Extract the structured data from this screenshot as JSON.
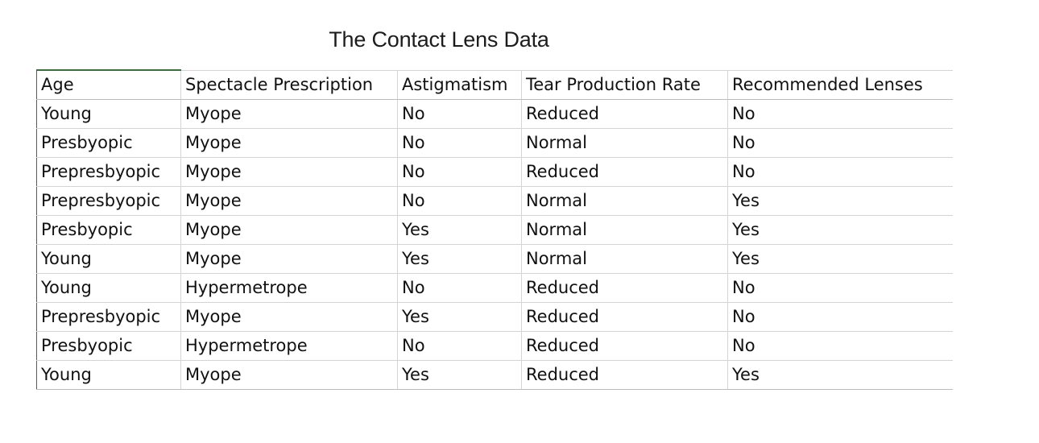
{
  "title": "The Contact Lens Data",
  "table": {
    "headers": [
      "Age",
      "Spectacle Prescription",
      "Astigmatism",
      "Tear Production Rate",
      "Recommended Lenses"
    ],
    "rows": [
      [
        "Young",
        "Myope",
        "No",
        "Reduced",
        "No"
      ],
      [
        "Presbyopic",
        "Myope",
        "No",
        "Normal",
        "No"
      ],
      [
        "Prepresbyopic",
        "Myope",
        "No",
        "Reduced",
        "No"
      ],
      [
        "Prepresbyopic",
        "Myope",
        "No",
        "Normal",
        "Yes"
      ],
      [
        "Presbyopic",
        "Myope",
        "Yes",
        "Normal",
        "Yes"
      ],
      [
        "Young",
        "Myope",
        "Yes",
        "Normal",
        "Yes"
      ],
      [
        "Young",
        "Hypermetrope",
        "No",
        "Reduced",
        "No"
      ],
      [
        "Prepresbyopic",
        "Myope",
        "Yes",
        "Reduced",
        "No"
      ],
      [
        "Presbyopic",
        "Hypermetrope",
        "No",
        "Reduced",
        "No"
      ],
      [
        "Young",
        "Myope",
        "Yes",
        "Reduced",
        "Yes"
      ]
    ]
  }
}
